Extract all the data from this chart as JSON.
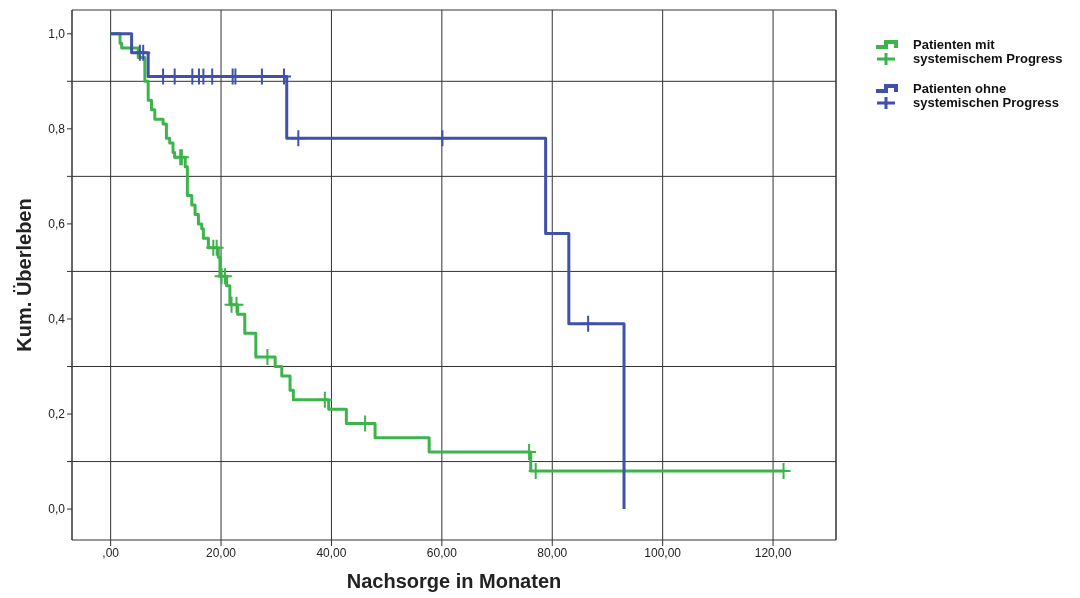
{
  "chart_data": {
    "type": "step",
    "xlabel": "Nachsorge in Monaten",
    "ylabel": "Kum. Überleben",
    "xlim": [
      -7,
      131.4
    ],
    "ylim": [
      -0.065,
      1.05
    ],
    "xticks": [
      {
        "value": 0,
        "label": ",00"
      },
      {
        "value": 20,
        "label": "20,00"
      },
      {
        "value": 40,
        "label": "40,00"
      },
      {
        "value": 60,
        "label": "60,00"
      },
      {
        "value": 80,
        "label": "80,00"
      },
      {
        "value": 100,
        "label": "100,00"
      },
      {
        "value": 120,
        "label": "120,00"
      }
    ],
    "yticks": [
      {
        "value": 0,
        "label": "0,0"
      },
      {
        "value": 0.1,
        "label": null
      },
      {
        "value": 0.2,
        "label": "0,2"
      },
      {
        "value": 0.3,
        "label": null
      },
      {
        "value": 0.4,
        "label": "0,4"
      },
      {
        "value": 0.5,
        "label": null
      },
      {
        "value": 0.6,
        "label": "0,6"
      },
      {
        "value": 0.7,
        "label": null
      },
      {
        "value": 0.8,
        "label": "0,8"
      },
      {
        "value": 0.9,
        "label": null
      },
      {
        "value": 1,
        "label": "1,0"
      }
    ],
    "grid": true,
    "legend": "top right",
    "line_style": "solid",
    "series": [
      {
        "name": "Patienten mit systemischem Progress",
        "color": "#3cb44b",
        "x": [
          0,
          1.7,
          2.0,
          5.0,
          6.2,
          6.8,
          7.4,
          8.0,
          9.5,
          10.1,
          10.7,
          11.3,
          11.6,
          13.5,
          13.9,
          14.7,
          15.3,
          15.9,
          16.5,
          16.8,
          17.7,
          19.5,
          19.8,
          21.0,
          21.6,
          23.0,
          24.3,
          26.3,
          29.8,
          31.0,
          32.5,
          33.1,
          39.5,
          42.7,
          47.9,
          57.7,
          76.1,
          121.9
        ],
        "values": [
          1.0,
          0.98,
          0.97,
          0.95,
          0.9,
          0.86,
          0.84,
          0.82,
          0.81,
          0.78,
          0.77,
          0.75,
          0.74,
          0.72,
          0.66,
          0.64,
          0.62,
          0.6,
          0.59,
          0.57,
          0.55,
          0.53,
          0.49,
          0.47,
          0.43,
          0.41,
          0.37,
          0.32,
          0.3,
          0.28,
          0.25,
          0.23,
          0.21,
          0.18,
          0.15,
          0.12,
          0.08,
          0.08
        ]
      },
      {
        "type": "scatter",
        "marker": "cross",
        "color": "#3cb44b",
        "x": [
          12.6,
          12.9,
          18.6,
          19.2,
          20.1,
          20.7,
          21.9,
          22.8,
          28.4,
          38.8,
          46.1,
          75.8,
          77.0,
          121.9
        ],
        "values": [
          0.74,
          0.74,
          0.55,
          0.55,
          0.49,
          0.49,
          0.43,
          0.43,
          0.32,
          0.23,
          0.18,
          0.12,
          0.08,
          0.08
        ]
      },
      {
        "name": "Patienten ohne systemischen Progress",
        "color": "#3f51a8",
        "x": [
          0,
          3.8,
          6.8,
          31.9,
          78.8,
          83.0,
          93.0
        ],
        "values": [
          1.0,
          0.96,
          0.91,
          0.78,
          0.58,
          0.39,
          0.0
        ]
      },
      {
        "type": "scatter",
        "marker": "cross",
        "color": "#3f51a8",
        "x": [
          5.3,
          5.9,
          9.5,
          11.6,
          14.8,
          16.0,
          16.8,
          18.4,
          22.1,
          22.6,
          27.4,
          31.4,
          34.0,
          60.1,
          86.5
        ],
        "values": [
          0.96,
          0.96,
          0.91,
          0.91,
          0.91,
          0.91,
          0.91,
          0.91,
          0.91,
          0.91,
          0.91,
          0.91,
          0.78,
          0.78,
          0.39
        ]
      }
    ]
  }
}
